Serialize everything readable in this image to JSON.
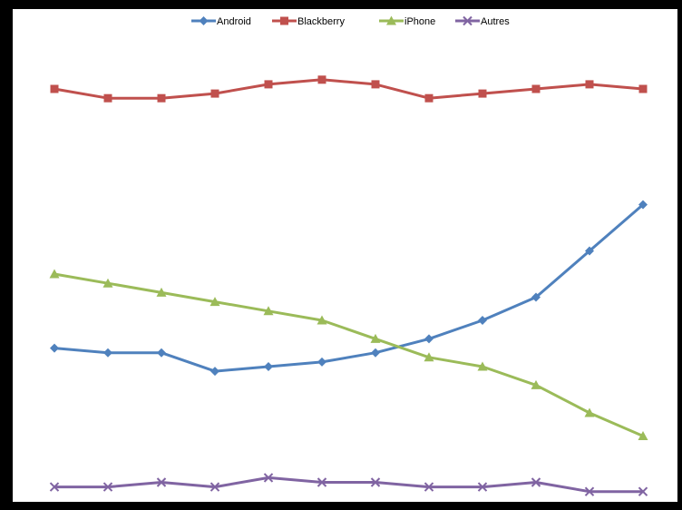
{
  "chart_data": {
    "type": "line",
    "title": "",
    "xlabel": "",
    "ylabel": "",
    "x": [
      1,
      2,
      3,
      4,
      5,
      6,
      7,
      8,
      9,
      10,
      11,
      12
    ],
    "ylim": [
      0,
      100
    ],
    "grid": false,
    "legend_position": "top",
    "series": [
      {
        "name": "Android",
        "color": "#4f81bd",
        "marker": "diamond",
        "values": [
          34,
          33,
          33,
          29,
          30,
          31,
          33,
          36,
          40,
          45,
          55,
          65
        ]
      },
      {
        "name": "Blackberry",
        "color": "#c0504d",
        "marker": "square",
        "values": [
          90,
          88,
          88,
          89,
          91,
          92,
          91,
          88,
          89,
          90,
          91,
          90
        ]
      },
      {
        "name": "iPhone",
        "color": "#9bbb59",
        "marker": "triangle",
        "values": [
          50,
          48,
          46,
          44,
          42,
          40,
          36,
          32,
          30,
          26,
          20,
          15
        ]
      },
      {
        "name": "Autres",
        "color": "#8064a2",
        "marker": "x",
        "values": [
          4,
          4,
          5,
          4,
          6,
          5,
          5,
          4,
          4,
          5,
          3,
          3
        ]
      }
    ]
  }
}
